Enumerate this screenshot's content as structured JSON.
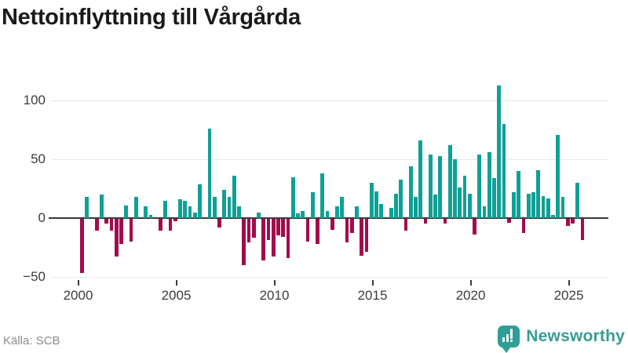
{
  "title": "Nettoinflyttning till Vårgårda",
  "source": "Källa: SCB",
  "brand": {
    "name": "Newsworthy",
    "icon": "newsworthy-bubble-barchart-icon",
    "color": "#3a9c94"
  },
  "colors": {
    "positive": "#0fa096",
    "negative": "#a30b4d",
    "gridline": "#e9e9e9",
    "zero_axis": "#3a3a3a",
    "title_text": "#1a1a1a",
    "axis_text": "#3c3c3c",
    "source_text": "#8c8c8c"
  },
  "chart_data": {
    "type": "bar",
    "title": "Nettoinflyttning till Vårgårda",
    "frequency": "quarterly",
    "x_start": "2000-Q1",
    "x_end": "2025-Q3",
    "values": [
      -46,
      18,
      0,
      -10,
      20,
      -4,
      -10,
      -32,
      -21,
      11,
      -19,
      18,
      0,
      10,
      3,
      0,
      -10,
      15,
      -10,
      -2,
      16,
      15,
      10,
      5,
      29,
      0,
      76,
      18,
      -7,
      24,
      18,
      36,
      10,
      -39,
      -20,
      -16,
      5,
      -35,
      -18,
      -32,
      -14,
      -15,
      -33,
      35,
      4,
      6,
      -19,
      22,
      -21,
      38,
      6,
      -9,
      10,
      18,
      -20,
      -12,
      10,
      -31,
      -28,
      30,
      23,
      12,
      0,
      9,
      21,
      33,
      -10,
      44,
      18,
      66,
      -4,
      54,
      20,
      53,
      -4,
      62,
      50,
      26,
      36,
      21,
      -13,
      54,
      10,
      56,
      34,
      113,
      80,
      -3,
      22,
      40,
      -12,
      21,
      22,
      41,
      19,
      17,
      3,
      71,
      18,
      -6,
      -4,
      30,
      -18
    ],
    "x_tick_labels": [
      "2000",
      "2005",
      "2010",
      "2015",
      "2020",
      "2025"
    ],
    "y_ticks": [
      100,
      50,
      0,
      -50
    ],
    "y_tick_labels": [
      "100",
      "50",
      "0",
      "−50"
    ],
    "ylim": [
      -50,
      115
    ],
    "grid": "horizontal",
    "legend": "none",
    "positive_color": "#0fa096",
    "negative_color": "#a30b4d"
  }
}
